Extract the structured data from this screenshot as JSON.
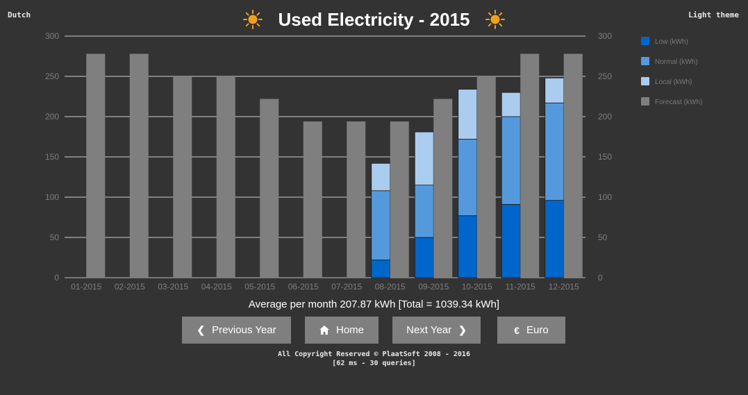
{
  "header": {
    "language_link": "Dutch",
    "theme_link": "Light theme",
    "title": "Used Electricity - 2015",
    "title_icon": "sun-icon"
  },
  "chart_data": {
    "type": "bar",
    "stacked": true,
    "title": "Used Electricity - 2015",
    "categories": [
      "01-2015",
      "02-2015",
      "03-2015",
      "04-2015",
      "05-2015",
      "06-2015",
      "07-2015",
      "08-2015",
      "09-2015",
      "10-2015",
      "11-2015",
      "12-2015"
    ],
    "series": [
      {
        "name": "Low (kWh)",
        "color": "#0066cc",
        "stack": "used",
        "values": [
          0,
          0,
          0,
          0,
          0,
          0,
          0,
          22,
          50,
          77,
          91,
          96
        ]
      },
      {
        "name": "Normal (kWh)",
        "color": "#5599dd",
        "stack": "used",
        "values": [
          0,
          0,
          0,
          0,
          0,
          0,
          0,
          86,
          65,
          95,
          109,
          121
        ]
      },
      {
        "name": "Local (kWh)",
        "color": "#aaccee",
        "stack": "used",
        "values": [
          0,
          0,
          0,
          0,
          0,
          0,
          0,
          34,
          66,
          62,
          30,
          31
        ]
      },
      {
        "name": "Forecast (kWh)",
        "color": "#7f7f7f",
        "stack": "forecast",
        "values": [
          278,
          278,
          250,
          250,
          222,
          194,
          194,
          194,
          222,
          250,
          278,
          278
        ]
      }
    ],
    "ylim": [
      0,
      300
    ],
    "yticks": [
      0,
      50,
      100,
      150,
      200,
      250,
      300
    ],
    "dual_axis": true,
    "grid": true,
    "legend_position": "right"
  },
  "summary": {
    "text": "Average per month 207.87 kWh [Total = 1039.34 kWh]"
  },
  "nav": {
    "prev_label": "Previous Year",
    "prev_icon": "chevron-left-icon",
    "home_label": "Home",
    "home_icon": "home-icon",
    "next_label": "Next Year",
    "next_icon": "chevron-right-icon",
    "euro_label": "Euro",
    "euro_icon": "euro-icon"
  },
  "footer": {
    "copyright": "All Copyright Reserved © PlaatSoft 2008 - 2016",
    "stats": "[62 ms - 30 queries]"
  },
  "colors": {
    "background": "#333333",
    "button": "#7f7f7f",
    "gridline": "#cccccc",
    "sun": "#f0a020"
  }
}
